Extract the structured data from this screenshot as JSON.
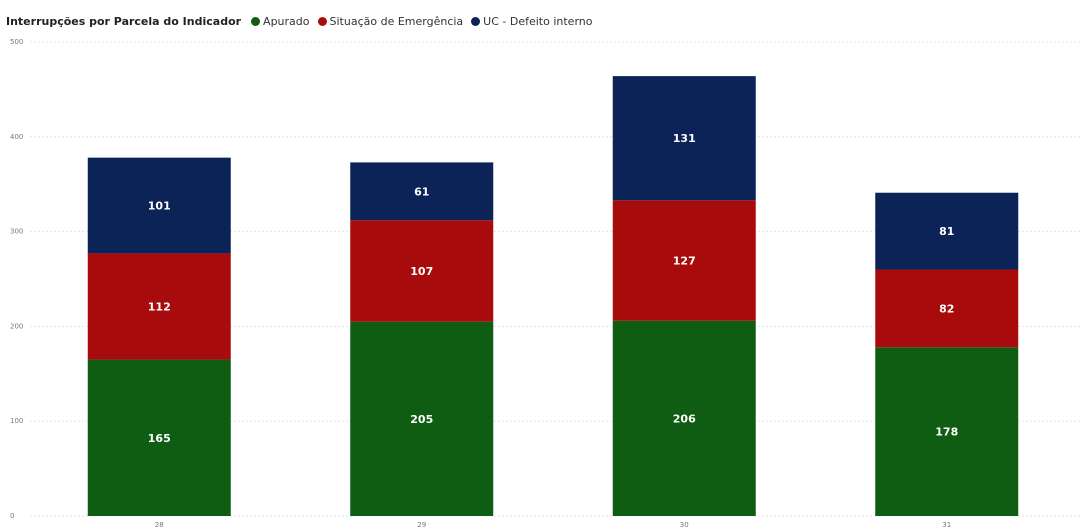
{
  "chart_data": {
    "type": "bar",
    "stacked": true,
    "title": "Interrupções por Parcela do Indicador",
    "categories": [
      "28",
      "29",
      "30",
      "31"
    ],
    "ylim": [
      0,
      500
    ],
    "yticks": [
      "0",
      "100",
      "200",
      "300",
      "400",
      "500"
    ],
    "grid": true,
    "legend_position": "top-left",
    "series": [
      {
        "name": "Apurado",
        "color": "#0f5c13",
        "values": [
          165,
          205,
          206,
          178
        ]
      },
      {
        "name": "Situação de Emergência",
        "color": "#a80b0b",
        "values": [
          112,
          107,
          127,
          82
        ]
      },
      {
        "name": "UC - Defeito interno",
        "color": "#0b2356",
        "values": [
          101,
          61,
          131,
          81
        ]
      }
    ]
  }
}
